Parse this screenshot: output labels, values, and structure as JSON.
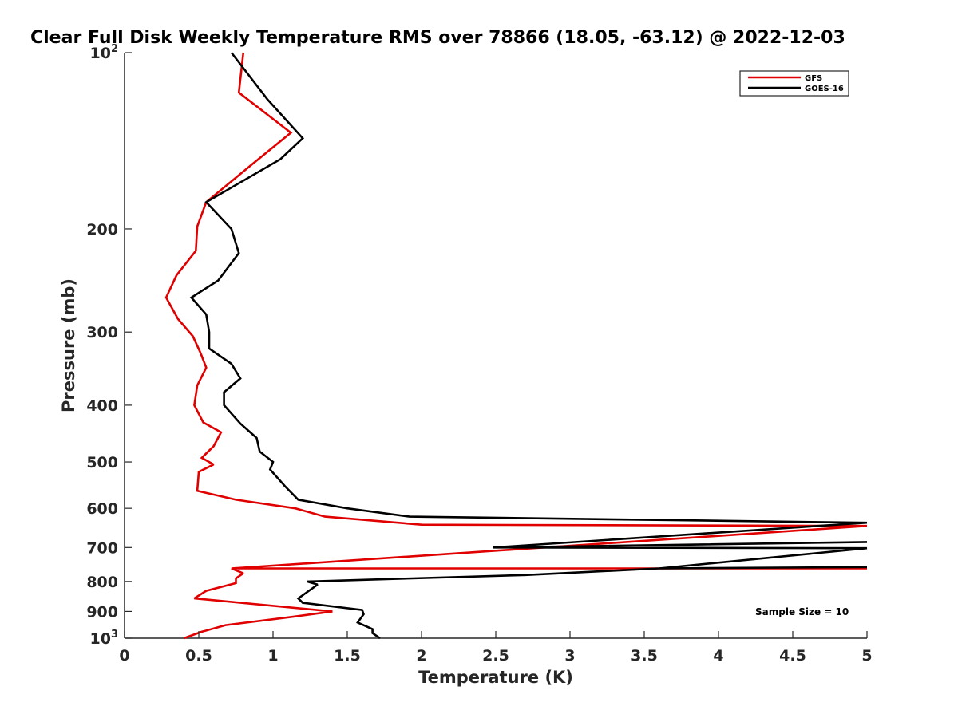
{
  "chart_data": {
    "type": "line",
    "title": "Clear Full Disk Weekly Temperature RMS over 78866 (18.05, -63.12) @ 2022-12-03",
    "xlabel": "Temperature (K)",
    "ylabel": "Pressure (mb)",
    "xlim": [
      0,
      5
    ],
    "ylim": [
      100,
      1000
    ],
    "yscale": "log",
    "y_reversed": true,
    "grid": false,
    "legend_position": "top-right",
    "x_ticks": [
      0,
      0.5,
      1,
      1.5,
      2,
      2.5,
      3,
      3.5,
      4,
      4.5,
      5
    ],
    "x_tick_labels": [
      "0",
      "0.5",
      "1",
      "1.5",
      "2",
      "2.5",
      "3",
      "3.5",
      "4",
      "4.5",
      "5"
    ],
    "y_ticks": [
      {
        "value": 100,
        "base": "10",
        "exp": "2"
      },
      {
        "value": 200,
        "label": "200"
      },
      {
        "value": 300,
        "label": "300"
      },
      {
        "value": 400,
        "label": "400"
      },
      {
        "value": 500,
        "label": "500"
      },
      {
        "value": 600,
        "label": "600"
      },
      {
        "value": 700,
        "label": "700"
      },
      {
        "value": 800,
        "label": "800"
      },
      {
        "value": 900,
        "label": "900"
      },
      {
        "value": 1000,
        "base": "10",
        "exp": "3"
      }
    ],
    "annotation": "Sample Size = 10",
    "series": [
      {
        "name": "GFS",
        "color": "#e00000",
        "points": [
          [
            0.8,
            100
          ],
          [
            0.77,
            117
          ],
          [
            1.12,
            137
          ],
          [
            0.86,
            155
          ],
          [
            0.55,
            180
          ],
          [
            0.49,
            198
          ],
          [
            0.48,
            218
          ],
          [
            0.35,
            240
          ],
          [
            0.28,
            262
          ],
          [
            0.36,
            285
          ],
          [
            0.46,
            305
          ],
          [
            0.51,
            325
          ],
          [
            0.55,
            345
          ],
          [
            0.49,
            370
          ],
          [
            0.47,
            400
          ],
          [
            0.53,
            428
          ],
          [
            0.65,
            445
          ],
          [
            0.6,
            470
          ],
          [
            0.52,
            492
          ],
          [
            0.6,
            505
          ],
          [
            0.5,
            520
          ],
          [
            0.49,
            560
          ],
          [
            0.75,
            580
          ],
          [
            1.15,
            600
          ],
          [
            1.35,
            620
          ],
          [
            2.0,
            640
          ],
          [
            5.0,
            643
          ],
          [
            0.72,
            760
          ],
          [
            5.0,
            760
          ],
          [
            0.72,
            760
          ],
          [
            0.8,
            775
          ],
          [
            0.75,
            790
          ],
          [
            0.75,
            805
          ],
          [
            0.55,
            830
          ],
          [
            0.47,
            855
          ],
          [
            1.4,
            900
          ],
          [
            1.12,
            920
          ],
          [
            0.68,
            950
          ],
          [
            0.52,
            975
          ],
          [
            0.4,
            1000
          ]
        ]
      },
      {
        "name": "GOES-16",
        "color": "#000000",
        "points": [
          [
            0.72,
            100
          ],
          [
            0.96,
            120
          ],
          [
            1.2,
            140
          ],
          [
            1.05,
            152
          ],
          [
            0.55,
            180
          ],
          [
            0.72,
            200
          ],
          [
            0.77,
            220
          ],
          [
            0.63,
            245
          ],
          [
            0.45,
            262
          ],
          [
            0.55,
            280
          ],
          [
            0.57,
            300
          ],
          [
            0.57,
            320
          ],
          [
            0.72,
            340
          ],
          [
            0.78,
            360
          ],
          [
            0.67,
            380
          ],
          [
            0.67,
            400
          ],
          [
            0.78,
            430
          ],
          [
            0.89,
            455
          ],
          [
            0.91,
            480
          ],
          [
            1.0,
            500
          ],
          [
            0.98,
            515
          ],
          [
            1.08,
            550
          ],
          [
            1.17,
            580
          ],
          [
            1.5,
            600
          ],
          [
            1.92,
            620
          ],
          [
            5.0,
            635
          ],
          [
            2.48,
            700
          ],
          [
            5.0,
            685
          ],
          [
            2.48,
            700
          ],
          [
            5.0,
            702
          ],
          [
            3.6,
            760
          ],
          [
            5.0,
            756
          ],
          [
            3.6,
            760
          ],
          [
            2.7,
            780
          ],
          [
            1.23,
            800
          ],
          [
            1.3,
            810
          ],
          [
            1.17,
            855
          ],
          [
            1.2,
            870
          ],
          [
            1.6,
            895
          ],
          [
            1.61,
            910
          ],
          [
            1.57,
            940
          ],
          [
            1.67,
            965
          ],
          [
            1.67,
            980
          ],
          [
            1.72,
            1000
          ]
        ]
      }
    ]
  }
}
